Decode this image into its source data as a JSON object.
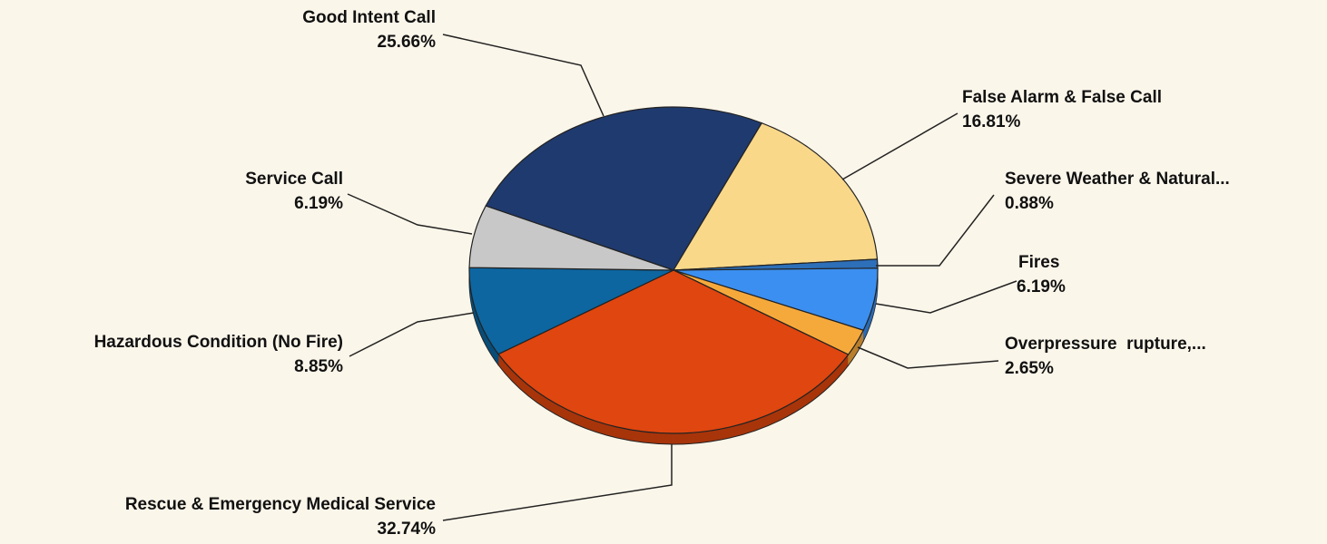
{
  "chart_data": {
    "type": "pie",
    "categories": [
      "Good Intent Call",
      "False Alarm & False Call",
      "Severe Weather & Natural...",
      "Fires",
      "Overpressure  rupture,...",
      "Rescue & Emergency Medical Service",
      "Hazardous Condition (No Fire)",
      "Service Call"
    ],
    "values": [
      25.66,
      16.81,
      0.88,
      6.19,
      2.65,
      32.74,
      8.85,
      6.19
    ],
    "value_labels": [
      "25.66%",
      "16.81%",
      "0.88%",
      "6.19%",
      "2.65%",
      "32.74%",
      "8.85%",
      "6.19%"
    ],
    "colors": [
      "#1f3a6e",
      "#f9d88a",
      "#2d6fb8",
      "#3b8ff0",
      "#f6a93b",
      "#e0460f",
      "#0d66a0",
      "#c8c8c8"
    ]
  }
}
